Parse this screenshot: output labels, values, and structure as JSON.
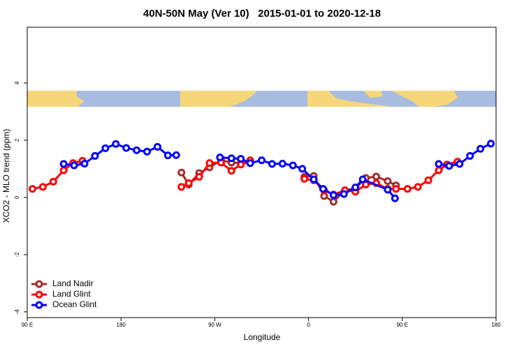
{
  "chart_data": {
    "type": "line",
    "title": "40N-50N May (Ver 10)   2015-01-01 to 2020-12-18",
    "x_label": "Longitude",
    "y_label": "XCO2 - MLO trend (ppm)",
    "xlim": [
      90,
      540
    ],
    "xticks": [
      {
        "value": 90,
        "label": "90 E"
      },
      180,
      {
        "value": 270,
        "label": "90 W"
      },
      {
        "value": 360,
        "label": "0"
      },
      {
        "value": 450,
        "label": "90 E"
      },
      {
        "value": 540,
        "label": "180"
      }
    ],
    "ylim": [
      -4.2,
      5.95
    ],
    "yticks": [
      -4,
      -2,
      0,
      2,
      4
    ],
    "legend": "bottom-left",
    "series": [
      {
        "name": "Land Nadir",
        "color": "#a52a2a",
        "x": [
          238,
          245,
          255,
          265,
          276,
          286,
          295,
          304,
          null,
          356,
          365,
          375,
          384,
          395,
          405,
          415,
          425,
          436,
          444
        ],
        "values": [
          0.87,
          0.45,
          0.85,
          1.05,
          1.3,
          1.22,
          1.2,
          1.2,
          null,
          0.72,
          0.75,
          0.05,
          -0.15,
          0.25,
          0.32,
          0.68,
          0.73,
          0.57,
          0.42
        ]
      },
      {
        "name": "Land Glint",
        "color": "#ff0000",
        "x": [
          95,
          105,
          115,
          125,
          134,
          143,
          null,
          238,
          245,
          255,
          265,
          276,
          286,
          295,
          304,
          null,
          356,
          365,
          375,
          384,
          395,
          405,
          415,
          425,
          436,
          444,
          455,
          465,
          475,
          485,
          493,
          503
        ],
        "values": [
          0.3,
          0.37,
          0.55,
          0.95,
          1.2,
          1.28,
          null,
          0.37,
          0.5,
          0.72,
          1.2,
          1.22,
          0.93,
          1.15,
          1.3,
          null,
          0.65,
          0.6,
          0.25,
          0.1,
          0.25,
          0.2,
          0.45,
          0.5,
          0.3,
          0.3,
          0.3,
          0.37,
          0.6,
          0.95,
          1.15,
          1.25
        ]
      },
      {
        "name": "Ocean Glint",
        "color": "#0000ff",
        "x": [
          125,
          135,
          145,
          155,
          165,
          175,
          185,
          195,
          205,
          215,
          225,
          233,
          null,
          275,
          286,
          295,
          304,
          315,
          325,
          335,
          345,
          354,
          365,
          374,
          384,
          394,
          405,
          412,
          436,
          443,
          null,
          485,
          495,
          505,
          515,
          525,
          535
        ],
        "values": [
          1.17,
          1.12,
          1.18,
          1.45,
          1.72,
          1.87,
          1.73,
          1.65,
          1.6,
          1.77,
          1.47,
          1.48,
          null,
          1.4,
          1.37,
          1.35,
          1.2,
          1.3,
          1.17,
          1.18,
          1.12,
          1.0,
          0.63,
          0.3,
          0.08,
          0.12,
          0.35,
          0.63,
          0.27,
          -0.03,
          null,
          1.17,
          1.1,
          1.17,
          1.45,
          1.7,
          1.88
        ]
      }
    ]
  }
}
